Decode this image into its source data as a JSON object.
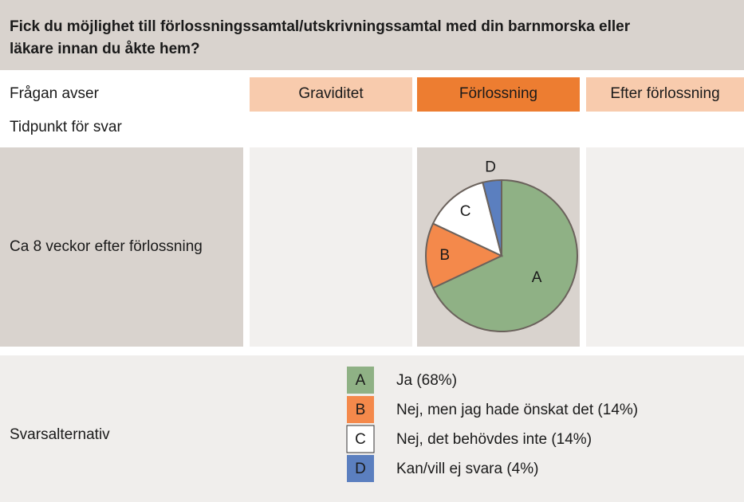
{
  "header": {
    "title_lines": [
      "Fick du möjlighet till förlossningssamtal/utskrivningssamtal med din barnmorska eller",
      "läkare innan du åkte hem?"
    ]
  },
  "table": {
    "row_label": "Frågan avser",
    "columns": [
      "Graviditet",
      "Förlossning",
      "Efter förlossning"
    ],
    "time_label": "Tidpunkt för svar",
    "time_point": "Ca 8 veckor efter förlossning",
    "legend_label": "Svarsalternativ"
  },
  "chart_data": {
    "type": "pie",
    "categories": [
      "A",
      "B",
      "C",
      "D"
    ],
    "legend": [
      "Ja (68%)",
      "Nej, men jag hade önskat det (14%)",
      "Nej, det behövdes inte (14%)",
      "Kan/vill ej svara (4%)"
    ],
    "values": [
      68,
      14,
      14,
      4
    ],
    "colors": [
      "#8fb185",
      "#f4894b",
      "#ffffff",
      "#5b7fbf"
    ]
  }
}
